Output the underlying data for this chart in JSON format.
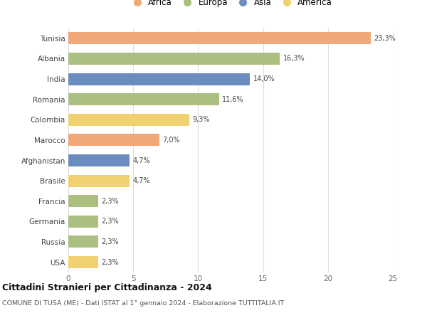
{
  "countries": [
    "Tunisia",
    "Albania",
    "India",
    "Romania",
    "Colombia",
    "Marocco",
    "Afghanistan",
    "Brasile",
    "Francia",
    "Germania",
    "Russia",
    "USA"
  ],
  "values": [
    23.3,
    16.3,
    14.0,
    11.6,
    9.3,
    7.0,
    4.7,
    4.7,
    2.3,
    2.3,
    2.3,
    2.3
  ],
  "labels": [
    "23,3%",
    "16,3%",
    "14,0%",
    "11,6%",
    "9,3%",
    "7,0%",
    "4,7%",
    "4,7%",
    "2,3%",
    "2,3%",
    "2,3%",
    "2,3%"
  ],
  "continents": [
    "Africa",
    "Europa",
    "Asia",
    "Europa",
    "America",
    "Africa",
    "Asia",
    "America",
    "Europa",
    "Europa",
    "Europa",
    "America"
  ],
  "colors": {
    "Africa": "#F0A878",
    "Europa": "#AABF80",
    "Asia": "#6B8CBE",
    "America": "#F0D070"
  },
  "legend_order": [
    "Africa",
    "Europa",
    "Asia",
    "America"
  ],
  "title": "Cittadini Stranieri per Cittadinanza - 2024",
  "subtitle": "COMUNE DI TUSA (ME) - Dati ISTAT al 1° gennaio 2024 - Elaborazione TUTTITALIA.IT",
  "xlim": [
    0,
    25
  ],
  "xticks": [
    0,
    5,
    10,
    15,
    20,
    25
  ],
  "bg_color": "#ffffff",
  "grid_color": "#dddddd",
  "bar_height": 0.6
}
